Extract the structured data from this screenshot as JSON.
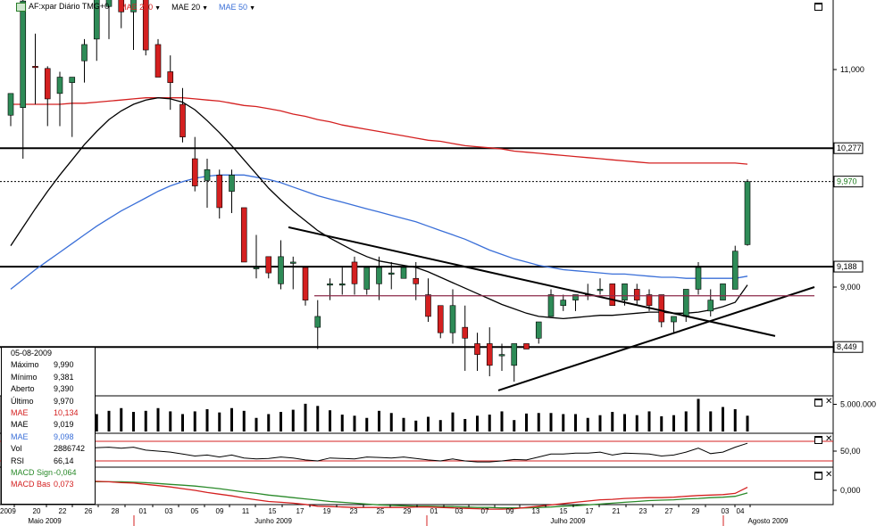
{
  "header": {
    "symbol_label": "AF:xpar Diário TMG+0",
    "indicators": [
      {
        "label": "MAE 200",
        "color": "#d42020"
      },
      {
        "label": "MAE 20",
        "color": "#000000"
      },
      {
        "label": "MAE 50",
        "color": "#3a6fd8"
      }
    ]
  },
  "info_panel": {
    "date": "05-08-2009",
    "rows": [
      {
        "label": "Máximo",
        "value": "9,990",
        "color": "#000000"
      },
      {
        "label": "Mínimo",
        "value": "9,381",
        "color": "#000000"
      },
      {
        "label": "Aberto",
        "value": "9,390",
        "color": "#000000"
      },
      {
        "label": "Último",
        "value": "9,970",
        "color": "#000000"
      },
      {
        "label": "MAE",
        "value": "10,134",
        "color": "#d42020"
      },
      {
        "label": "MAE",
        "value": "9,019",
        "color": "#000000"
      },
      {
        "label": "MAE",
        "value": "9,098",
        "color": "#3a6fd8"
      },
      {
        "label": "Vol",
        "value": "2886742",
        "color": "#000000"
      },
      {
        "label": "RSI",
        "value": "66,14",
        "color": "#000000"
      },
      {
        "label": "MACD Sign",
        "value": "-0,064",
        "color": "#2a8a2a"
      },
      {
        "label": "MACD Bas",
        "value": "0,073",
        "color": "#d42020"
      }
    ]
  },
  "chart_data": {
    "type": "candlestick",
    "price_axis": {
      "ticks": [
        "11,000",
        "9,000"
      ],
      "hlines": [
        {
          "label": "10,277",
          "style": "solid"
        },
        {
          "label": "9,970",
          "style": "dotted"
        },
        {
          "label": "9,188",
          "style": "solid"
        },
        {
          "label": "8,449",
          "style": "solid"
        }
      ]
    },
    "volume_axis": {
      "ticks": [
        "5.000.000"
      ]
    },
    "rsi_axis": {
      "ticks": [
        "50,00"
      ]
    },
    "macd_axis": {
      "ticks": [
        "0,000"
      ]
    },
    "x_day_labels": [
      "2009",
      "20",
      "22",
      "26",
      "28",
      "01",
      "03",
      "05",
      "09",
      "11",
      "15",
      "17",
      "19",
      "23",
      "25",
      "29",
      "01",
      "03",
      "07",
      "09",
      "13",
      "15",
      "17",
      "21",
      "23",
      "27",
      "29",
      "03",
      "04"
    ],
    "x_month_labels": [
      "Maio 2009",
      "Junho 2009",
      "Julho 2009",
      "Agosto 2009"
    ],
    "candles": [
      {
        "o": 10.58,
        "h": 10.78,
        "l": 10.48,
        "c": 10.78
      },
      {
        "o": 10.65,
        "h": 11.78,
        "l": 10.18,
        "c": 11.63
      },
      {
        "o": 11.03,
        "h": 11.33,
        "l": 10.68,
        "c": 11.02
      },
      {
        "o": 11.01,
        "h": 11.03,
        "l": 10.48,
        "c": 10.73
      },
      {
        "o": 10.78,
        "h": 10.98,
        "l": 10.48,
        "c": 10.93
      },
      {
        "o": 10.88,
        "h": 10.93,
        "l": 10.38,
        "c": 10.93
      },
      {
        "o": 11.08,
        "h": 11.28,
        "l": 10.88,
        "c": 11.23
      },
      {
        "o": 11.28,
        "h": 11.73,
        "l": 11.08,
        "c": 11.68
      },
      {
        "o": 11.58,
        "h": 11.93,
        "l": 11.28,
        "c": 11.88
      },
      {
        "o": 11.68,
        "h": 11.88,
        "l": 11.38,
        "c": 11.53
      },
      {
        "o": 11.53,
        "h": 11.98,
        "l": 11.18,
        "c": 11.93
      },
      {
        "o": 11.93,
        "h": 11.98,
        "l": 11.13,
        "c": 11.18
      },
      {
        "o": 11.23,
        "h": 11.28,
        "l": 10.93,
        "c": 10.93
      },
      {
        "o": 10.98,
        "h": 11.13,
        "l": 10.63,
        "c": 10.88
      },
      {
        "o": 10.68,
        "h": 10.83,
        "l": 10.33,
        "c": 10.38
      },
      {
        "o": 10.18,
        "h": 10.38,
        "l": 9.88,
        "c": 9.93
      },
      {
        "o": 9.98,
        "h": 10.18,
        "l": 9.73,
        "c": 10.08
      },
      {
        "o": 10.03,
        "h": 10.08,
        "l": 9.63,
        "c": 9.73
      },
      {
        "o": 9.88,
        "h": 10.08,
        "l": 9.68,
        "c": 10.03
      },
      {
        "o": 9.73,
        "h": 9.73,
        "l": 9.23,
        "c": 9.23
      },
      {
        "o": 9.18,
        "h": 9.48,
        "l": 9.08,
        "c": 9.18
      },
      {
        "o": 9.28,
        "h": 9.28,
        "l": 9.08,
        "c": 9.13
      },
      {
        "o": 9.03,
        "h": 9.43,
        "l": 8.98,
        "c": 9.28
      },
      {
        "o": 9.23,
        "h": 9.28,
        "l": 8.98,
        "c": 9.23
      },
      {
        "o": 9.18,
        "h": 9.18,
        "l": 8.83,
        "c": 8.88
      },
      {
        "o": 8.63,
        "h": 8.88,
        "l": 8.43,
        "c": 8.73
      },
      {
        "o": 9.03,
        "h": 9.08,
        "l": 8.88,
        "c": 9.03
      },
      {
        "o": 9.03,
        "h": 9.18,
        "l": 8.93,
        "c": 9.03
      },
      {
        "o": 9.23,
        "h": 9.28,
        "l": 8.93,
        "c": 9.03
      },
      {
        "o": 8.98,
        "h": 9.18,
        "l": 8.93,
        "c": 9.18
      },
      {
        "o": 9.03,
        "h": 9.28,
        "l": 8.88,
        "c": 9.18
      },
      {
        "o": 9.13,
        "h": 9.23,
        "l": 8.98,
        "c": 9.13
      },
      {
        "o": 9.08,
        "h": 9.18,
        "l": 9.08,
        "c": 9.18
      },
      {
        "o": 9.08,
        "h": 9.23,
        "l": 8.88,
        "c": 9.03
      },
      {
        "o": 8.93,
        "h": 9.08,
        "l": 8.68,
        "c": 8.73
      },
      {
        "o": 8.83,
        "h": 8.83,
        "l": 8.53,
        "c": 8.58
      },
      {
        "o": 8.58,
        "h": 8.98,
        "l": 8.48,
        "c": 8.83
      },
      {
        "o": 8.63,
        "h": 8.83,
        "l": 8.23,
        "c": 8.53
      },
      {
        "o": 8.48,
        "h": 8.58,
        "l": 8.23,
        "c": 8.38
      },
      {
        "o": 8.48,
        "h": 8.63,
        "l": 8.18,
        "c": 8.28
      },
      {
        "o": 8.38,
        "h": 8.48,
        "l": 8.23,
        "c": 8.38
      },
      {
        "o": 8.28,
        "h": 8.48,
        "l": 8.13,
        "c": 8.48
      },
      {
        "o": 8.48,
        "h": 8.48,
        "l": 8.43,
        "c": 8.43
      },
      {
        "o": 8.53,
        "h": 8.68,
        "l": 8.48,
        "c": 8.68
      },
      {
        "o": 8.73,
        "h": 8.98,
        "l": 8.73,
        "c": 8.93
      },
      {
        "o": 8.83,
        "h": 8.93,
        "l": 8.78,
        "c": 8.88
      },
      {
        "o": 8.88,
        "h": 8.93,
        "l": 8.78,
        "c": 8.93
      },
      {
        "o": 8.93,
        "h": 9.03,
        "l": 8.88,
        "c": 8.93
      },
      {
        "o": 8.98,
        "h": 9.08,
        "l": 8.93,
        "c": 8.98
      },
      {
        "o": 9.03,
        "h": 9.03,
        "l": 8.83,
        "c": 8.83
      },
      {
        "o": 8.88,
        "h": 9.03,
        "l": 8.83,
        "c": 9.03
      },
      {
        "o": 8.98,
        "h": 9.03,
        "l": 8.83,
        "c": 8.88
      },
      {
        "o": 8.93,
        "h": 8.98,
        "l": 8.78,
        "c": 8.83
      },
      {
        "o": 8.93,
        "h": 8.93,
        "l": 8.63,
        "c": 8.68
      },
      {
        "o": 8.68,
        "h": 8.73,
        "l": 8.58,
        "c": 8.73
      },
      {
        "o": 8.73,
        "h": 8.98,
        "l": 8.68,
        "c": 8.98
      },
      {
        "o": 8.98,
        "h": 9.23,
        "l": 8.93,
        "c": 9.18
      },
      {
        "o": 8.78,
        "h": 8.98,
        "l": 8.73,
        "c": 8.88
      },
      {
        "o": 8.88,
        "h": 9.03,
        "l": 8.88,
        "c": 9.03
      },
      {
        "o": 8.98,
        "h": 9.38,
        "l": 8.98,
        "c": 9.33
      },
      {
        "o": 9.39,
        "h": 9.99,
        "l": 9.38,
        "c": 9.97
      }
    ],
    "ema200": [
      10.68,
      10.68,
      10.68,
      10.68,
      10.68,
      10.69,
      10.69,
      10.7,
      10.71,
      10.72,
      10.73,
      10.74,
      10.74,
      10.74,
      10.74,
      10.73,
      10.72,
      10.71,
      10.69,
      10.67,
      10.66,
      10.64,
      10.62,
      10.59,
      10.57,
      10.54,
      10.52,
      10.49,
      10.47,
      10.45,
      10.43,
      10.41,
      10.39,
      10.37,
      10.35,
      10.34,
      10.32,
      10.3,
      10.29,
      10.28,
      10.27,
      10.25,
      10.24,
      10.23,
      10.22,
      10.21,
      10.2,
      10.19,
      10.18,
      10.17,
      10.16,
      10.15,
      10.14,
      10.14,
      10.14,
      10.14,
      10.14,
      10.14,
      10.14,
      10.14,
      10.13
    ],
    "ema20": [
      9.38,
      9.55,
      9.72,
      9.88,
      10.03,
      10.17,
      10.31,
      10.43,
      10.54,
      10.62,
      10.68,
      10.72,
      10.74,
      10.73,
      10.7,
      10.63,
      10.53,
      10.42,
      10.3,
      10.17,
      10.04,
      9.91,
      9.8,
      9.7,
      9.61,
      9.52,
      9.45,
      9.39,
      9.33,
      9.28,
      9.24,
      9.22,
      9.2,
      9.18,
      9.14,
      9.09,
      9.04,
      8.99,
      8.94,
      8.89,
      8.84,
      8.8,
      8.76,
      8.73,
      8.72,
      8.71,
      8.72,
      8.73,
      8.74,
      8.74,
      8.75,
      8.76,
      8.77,
      8.77,
      8.76,
      8.76,
      8.77,
      8.79,
      8.82,
      8.86,
      9.02
    ],
    "ema50": [
      8.98,
      9.07,
      9.16,
      9.24,
      9.32,
      9.4,
      9.48,
      9.56,
      9.63,
      9.7,
      9.76,
      9.82,
      9.88,
      9.93,
      9.97,
      10.0,
      10.02,
      10.03,
      10.03,
      10.03,
      10.01,
      9.99,
      9.96,
      9.92,
      9.88,
      9.84,
      9.81,
      9.78,
      9.75,
      9.72,
      9.69,
      9.66,
      9.63,
      9.6,
      9.56,
      9.52,
      9.48,
      9.44,
      9.39,
      9.34,
      9.3,
      9.26,
      9.23,
      9.2,
      9.18,
      9.16,
      9.15,
      9.14,
      9.13,
      9.12,
      9.12,
      9.11,
      9.1,
      9.09,
      9.09,
      9.08,
      9.08,
      9.08,
      9.08,
      9.08,
      9.1
    ],
    "volume": [
      2.2,
      2.4,
      3.6,
      4.1,
      3.3,
      2.5,
      3.6,
      3.2,
      3.8,
      4.3,
      3.6,
      3.8,
      4.3,
      3.7,
      3.2,
      3.7,
      4.1,
      3.5,
      4.3,
      3.8,
      2.5,
      3.2,
      3.6,
      4.0,
      5.1,
      4.7,
      3.9,
      3.1,
      2.9,
      2.5,
      3.8,
      3.4,
      2.5,
      2.0,
      2.7,
      2.1,
      3.5,
      2.3,
      2.9,
      3.1,
      3.7,
      2.1,
      3.3,
      3.4,
      3.4,
      3.2,
      3.2,
      2.5,
      3.0,
      3.6,
      3.2,
      3.0,
      3.7,
      2.8,
      3.0,
      3.7,
      6.0,
      3.7,
      4.5,
      4.1,
      2.9
    ],
    "rsi": [
      52,
      55,
      57,
      56,
      57,
      54,
      55,
      57,
      58,
      56,
      58,
      52,
      50,
      48,
      44,
      40,
      42,
      38,
      42,
      36,
      34,
      35,
      38,
      36,
      32,
      30,
      36,
      35,
      34,
      38,
      37,
      36,
      38,
      35,
      32,
      30,
      34,
      30,
      28,
      28,
      30,
      33,
      32,
      38,
      44,
      44,
      46,
      46,
      48,
      42,
      46,
      45,
      44,
      40,
      42,
      48,
      56,
      45,
      48,
      58,
      66
    ],
    "macd_base": [
      0.19,
      0.23,
      0.22,
      0.21,
      0.22,
      0.22,
      0.22,
      0.21,
      0.2,
      0.18,
      0.17,
      0.14,
      0.11,
      0.08,
      0.04,
      0.0,
      -0.05,
      -0.09,
      -0.13,
      -0.18,
      -0.22,
      -0.26,
      -0.28,
      -0.3,
      -0.33,
      -0.37,
      -0.38,
      -0.39,
      -0.4,
      -0.4,
      -0.4,
      -0.4,
      -0.4,
      -0.39,
      -0.39,
      -0.4,
      -0.41,
      -0.42,
      -0.43,
      -0.44,
      -0.44,
      -0.43,
      -0.4,
      -0.37,
      -0.34,
      -0.31,
      -0.28,
      -0.25,
      -0.22,
      -0.21,
      -0.19,
      -0.18,
      -0.17,
      -0.17,
      -0.16,
      -0.14,
      -0.12,
      -0.11,
      -0.1,
      -0.07,
      0.07
    ],
    "macd_sign": [
      0.16,
      0.17,
      0.18,
      0.19,
      0.19,
      0.2,
      0.2,
      0.2,
      0.2,
      0.2,
      0.19,
      0.18,
      0.16,
      0.14,
      0.12,
      0.1,
      0.07,
      0.04,
      0.0,
      -0.04,
      -0.07,
      -0.11,
      -0.14,
      -0.17,
      -0.2,
      -0.23,
      -0.26,
      -0.28,
      -0.3,
      -0.32,
      -0.34,
      -0.35,
      -0.36,
      -0.37,
      -0.37,
      -0.38,
      -0.38,
      -0.39,
      -0.4,
      -0.4,
      -0.41,
      -0.41,
      -0.41,
      -0.4,
      -0.39,
      -0.37,
      -0.36,
      -0.34,
      -0.32,
      -0.3,
      -0.28,
      -0.26,
      -0.24,
      -0.23,
      -0.22,
      -0.2,
      -0.19,
      -0.17,
      -0.16,
      -0.14,
      -0.06
    ]
  }
}
